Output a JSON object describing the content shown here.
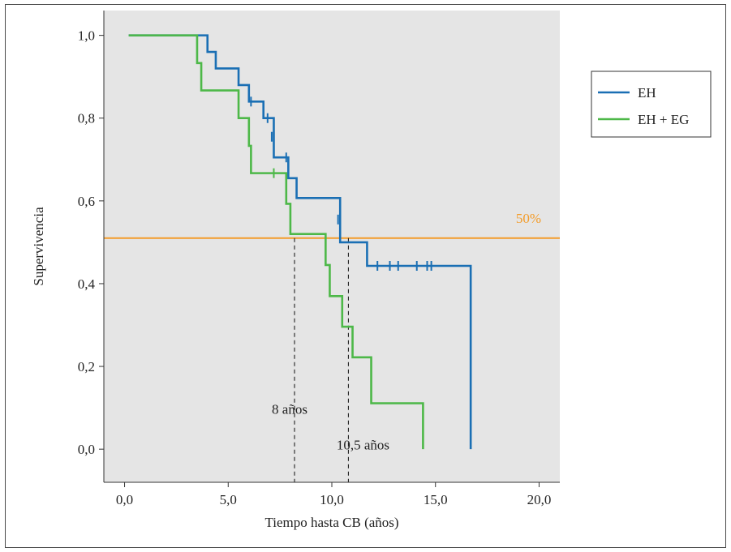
{
  "chart_data": {
    "type": "line",
    "title": "",
    "xlabel": "Tiempo hasta CB (años)",
    "ylabel": "Supervivencia",
    "xlim": [
      -1.0,
      21.0
    ],
    "ylim": [
      -0.08,
      1.06
    ],
    "xticks": [
      0.0,
      5.0,
      10.0,
      15.0,
      20.0
    ],
    "xtick_labels": [
      "0,0",
      "5,0",
      "10,0",
      "15,0",
      "20,0"
    ],
    "yticks": [
      0.0,
      0.2,
      0.4,
      0.6,
      0.8,
      1.0
    ],
    "ytick_labels": [
      "0,0",
      "0,2",
      "0,4",
      "0,6",
      "0,8",
      "1,0"
    ],
    "grid": false,
    "legend_position": "right",
    "background": "#e5e5e5",
    "series": [
      {
        "name": "EH",
        "color": "#1a6fb4",
        "x": [
          0.2,
          4.0,
          4.0,
          4.4,
          4.4,
          5.5,
          5.5,
          6.0,
          6.0,
          6.7,
          6.7,
          7.2,
          7.2,
          7.9,
          7.9,
          8.3,
          8.3,
          10.4,
          10.4,
          11.7,
          11.7,
          16.7,
          16.7
        ],
        "y": [
          1.0,
          1.0,
          0.96,
          0.96,
          0.92,
          0.92,
          0.88,
          0.88,
          0.84,
          0.84,
          0.8,
          0.8,
          0.705,
          0.705,
          0.655,
          0.655,
          0.607,
          0.607,
          0.5,
          0.5,
          0.443,
          0.443,
          0.0
        ],
        "censor_x": [
          6.1,
          6.9,
          7.1,
          7.8,
          10.3,
          12.2,
          12.8,
          13.2,
          14.1,
          14.6,
          14.8
        ],
        "censor_y": [
          0.84,
          0.8,
          0.755,
          0.705,
          0.555,
          0.443,
          0.443,
          0.443,
          0.443,
          0.443,
          0.443
        ]
      },
      {
        "name": "EH + EG",
        "color": "#4db848",
        "x": [
          0.2,
          3.5,
          3.5,
          3.7,
          3.7,
          5.5,
          5.5,
          6.0,
          6.0,
          6.1,
          6.1,
          7.8,
          7.8,
          8.0,
          8.0,
          9.7,
          9.7,
          9.9,
          9.9,
          10.5,
          10.5,
          11.0,
          11.0,
          11.9,
          11.9,
          14.4,
          14.4
        ],
        "y": [
          1.0,
          1.0,
          0.933,
          0.933,
          0.867,
          0.867,
          0.8,
          0.8,
          0.733,
          0.733,
          0.667,
          0.667,
          0.593,
          0.593,
          0.52,
          0.52,
          0.445,
          0.445,
          0.37,
          0.37,
          0.296,
          0.296,
          0.222,
          0.222,
          0.111,
          0.111,
          0.0
        ],
        "censor_x": [
          7.2
        ],
        "censor_y": [
          0.667
        ]
      }
    ],
    "reference_line": {
      "y": 0.51,
      "label": "50%",
      "color": "#f39c2a"
    },
    "median_markers": [
      {
        "x": 8.2,
        "label": "8 años"
      },
      {
        "x": 10.8,
        "label": "10,5 años"
      }
    ]
  }
}
